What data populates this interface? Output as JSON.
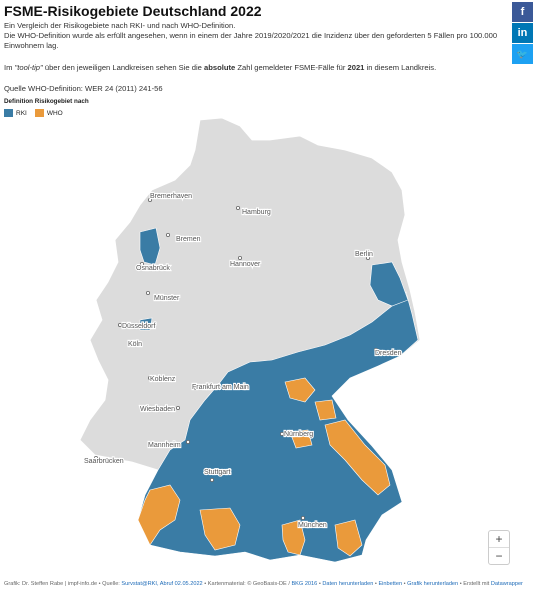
{
  "title": "FSME-Risikogebiete Deutschland 2022",
  "intro_line1": "Ein Vergleich der Risikogebiete nach RKI- und nach WHO-Definition.",
  "intro_line2": "Die WHO-Definition wurde als erfüllt angesehen, wenn in einem der Jahre 2019/2020/2021 die Inzidenz über den geforderten 5 Fällen pro 100.000 Einwohnern lag.",
  "tooltip_note": {
    "part1": "Im ",
    "italic": "\"tool-tip\"",
    "part2": " über den jeweiligen Landkreisen sehen Sie die ",
    "bold1": "absolute",
    "part3": " Zahl gemeldeter FSME-Fälle für ",
    "bold2": "2021",
    "part4": " in diesem Landkreis."
  },
  "source_note": "Quelle WHO-Definition: WER 24 (2011) 241-56",
  "legend": {
    "title": "Definition Risikogebiet nach",
    "items": [
      {
        "label": "RKI",
        "color": "#3a7ca5"
      },
      {
        "label": "WHO",
        "color": "#ea9a3b"
      }
    ]
  },
  "colors": {
    "rki": "#3a7ca5",
    "who": "#ea9a3b",
    "none": "#dcdcdc"
  },
  "share": [
    {
      "name": "facebook-icon",
      "glyph": "f",
      "color": "#3b5998"
    },
    {
      "name": "linkedin-icon",
      "glyph": "in",
      "color": "#0077b5"
    },
    {
      "name": "twitter-icon",
      "glyph": "🐦",
      "color": "#1da1f2"
    }
  ],
  "cities": [
    "Bremerhaven",
    "Hamburg",
    "Bremen",
    "Berlin",
    "Osnabrück",
    "Hannover",
    "Münster",
    "Düsseldorf",
    "Köln",
    "Dresden",
    "Koblenz",
    "Frankfurt am Main",
    "Wiesbaden",
    "Nürnberg",
    "Mannheim",
    "Saarbrücken",
    "Stuttgart",
    "München"
  ],
  "zoom": {
    "in": "+",
    "out": "−"
  },
  "footer": {
    "credit": "Grafik: Dr. Steffen Rabe | impf-info.de • Quelle: ",
    "source_link": "Survstat@RKI, Abruf 02.05.2022",
    "map_material": " • Kartenmaterial: © GeoBasis-DE / ",
    "bkg_link": "BKG 2016",
    "separator": " • ",
    "download_data": "Daten herunterladen",
    "embed": "Einbetten",
    "download_graphic": "Grafik herunterladen",
    "created_with": " • Erstellt mit ",
    "datawrapper": "Datawrapper"
  }
}
